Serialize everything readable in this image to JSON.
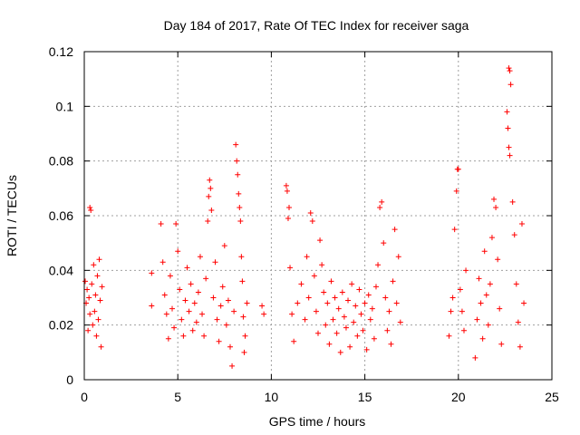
{
  "chart_data": {
    "type": "scatter",
    "title": "Day 184 of 2017, Rate Of TEC Index for receiver saga",
    "xlabel": "GPS time / hours",
    "ylabel": "ROTI / TECUs",
    "xlim": [
      0,
      25
    ],
    "ylim": [
      0,
      0.12
    ],
    "x_ticks": [
      0,
      5,
      10,
      15,
      20,
      25
    ],
    "y_ticks": [
      0,
      0.02,
      0.04,
      0.06,
      0.08,
      0.1,
      0.12
    ],
    "x_tick_labels": [
      "0",
      "5",
      "10",
      "15",
      "20",
      "25"
    ],
    "y_tick_labels": [
      "0",
      "0.02",
      "0.04",
      "0.06",
      "0.08",
      "0.1",
      "0.12"
    ],
    "grid": true,
    "marker": "+",
    "marker_color": "#ff0000",
    "series": [
      {
        "name": "ROTI",
        "points": [
          [
            0.05,
            0.036
          ],
          [
            0.1,
            0.028
          ],
          [
            0.15,
            0.033
          ],
          [
            0.2,
            0.018
          ],
          [
            0.25,
            0.03
          ],
          [
            0.3,
            0.024
          ],
          [
            0.3,
            0.063
          ],
          [
            0.35,
            0.062
          ],
          [
            0.4,
            0.035
          ],
          [
            0.45,
            0.02
          ],
          [
            0.5,
            0.042
          ],
          [
            0.55,
            0.025
          ],
          [
            0.6,
            0.031
          ],
          [
            0.65,
            0.016
          ],
          [
            0.7,
            0.038
          ],
          [
            0.75,
            0.022
          ],
          [
            0.8,
            0.044
          ],
          [
            0.85,
            0.029
          ],
          [
            0.9,
            0.012
          ],
          [
            0.95,
            0.034
          ],
          [
            3.6,
            0.039
          ],
          [
            3.6,
            0.027
          ],
          [
            4.1,
            0.057
          ],
          [
            4.2,
            0.043
          ],
          [
            4.3,
            0.031
          ],
          [
            4.4,
            0.024
          ],
          [
            4.5,
            0.015
          ],
          [
            4.6,
            0.038
          ],
          [
            4.7,
            0.026
          ],
          [
            4.8,
            0.019
          ],
          [
            4.9,
            0.057
          ],
          [
            5.0,
            0.047
          ],
          [
            5.1,
            0.033
          ],
          [
            5.2,
            0.022
          ],
          [
            5.3,
            0.016
          ],
          [
            5.4,
            0.029
          ],
          [
            5.5,
            0.041
          ],
          [
            5.6,
            0.025
          ],
          [
            5.7,
            0.035
          ],
          [
            5.8,
            0.018
          ],
          [
            5.9,
            0.028
          ],
          [
            6.0,
            0.021
          ],
          [
            6.1,
            0.032
          ],
          [
            6.2,
            0.045
          ],
          [
            6.3,
            0.024
          ],
          [
            6.4,
            0.016
          ],
          [
            6.5,
            0.037
          ],
          [
            6.6,
            0.058
          ],
          [
            6.65,
            0.067
          ],
          [
            6.7,
            0.073
          ],
          [
            6.75,
            0.07
          ],
          [
            6.8,
            0.062
          ],
          [
            6.9,
            0.03
          ],
          [
            7.0,
            0.043
          ],
          [
            7.1,
            0.022
          ],
          [
            7.2,
            0.014
          ],
          [
            7.3,
            0.027
          ],
          [
            7.4,
            0.034
          ],
          [
            7.5,
            0.049
          ],
          [
            7.6,
            0.02
          ],
          [
            7.7,
            0.029
          ],
          [
            7.8,
            0.012
          ],
          [
            7.9,
            0.005
          ],
          [
            8.0,
            0.025
          ],
          [
            8.1,
            0.086
          ],
          [
            8.15,
            0.08
          ],
          [
            8.2,
            0.075
          ],
          [
            8.25,
            0.068
          ],
          [
            8.3,
            0.063
          ],
          [
            8.35,
            0.058
          ],
          [
            8.4,
            0.045
          ],
          [
            8.45,
            0.036
          ],
          [
            8.5,
            0.023
          ],
          [
            8.55,
            0.01
          ],
          [
            8.6,
            0.016
          ],
          [
            8.7,
            0.028
          ],
          [
            9.5,
            0.027
          ],
          [
            9.6,
            0.024
          ],
          [
            10.8,
            0.071
          ],
          [
            10.85,
            0.069
          ],
          [
            10.9,
            0.059
          ],
          [
            10.95,
            0.063
          ],
          [
            11.0,
            0.041
          ],
          [
            11.1,
            0.024
          ],
          [
            11.2,
            0.014
          ],
          [
            11.4,
            0.028
          ],
          [
            11.6,
            0.035
          ],
          [
            11.8,
            0.022
          ],
          [
            11.9,
            0.045
          ],
          [
            12.0,
            0.03
          ],
          [
            12.1,
            0.061
          ],
          [
            12.2,
            0.058
          ],
          [
            12.3,
            0.038
          ],
          [
            12.4,
            0.025
          ],
          [
            12.5,
            0.017
          ],
          [
            12.6,
            0.051
          ],
          [
            12.7,
            0.042
          ],
          [
            12.8,
            0.032
          ],
          [
            12.9,
            0.02
          ],
          [
            13.0,
            0.028
          ],
          [
            13.1,
            0.013
          ],
          [
            13.2,
            0.036
          ],
          [
            13.3,
            0.022
          ],
          [
            13.4,
            0.03
          ],
          [
            13.5,
            0.017
          ],
          [
            13.6,
            0.026
          ],
          [
            13.7,
            0.01
          ],
          [
            13.8,
            0.032
          ],
          [
            13.9,
            0.023
          ],
          [
            14.0,
            0.019
          ],
          [
            14.1,
            0.029
          ],
          [
            14.2,
            0.012
          ],
          [
            14.3,
            0.035
          ],
          [
            14.4,
            0.021
          ],
          [
            14.5,
            0.027
          ],
          [
            14.6,
            0.016
          ],
          [
            14.7,
            0.033
          ],
          [
            14.8,
            0.024
          ],
          [
            14.9,
            0.018
          ],
          [
            15.0,
            0.028
          ],
          [
            15.1,
            0.011
          ],
          [
            15.2,
            0.031
          ],
          [
            15.3,
            0.022
          ],
          [
            15.4,
            0.026
          ],
          [
            15.5,
            0.015
          ],
          [
            15.6,
            0.034
          ],
          [
            15.7,
            0.042
          ],
          [
            15.8,
            0.063
          ],
          [
            15.9,
            0.065
          ],
          [
            16.0,
            0.05
          ],
          [
            16.1,
            0.03
          ],
          [
            16.2,
            0.018
          ],
          [
            16.3,
            0.025
          ],
          [
            16.4,
            0.013
          ],
          [
            16.5,
            0.036
          ],
          [
            16.6,
            0.055
          ],
          [
            16.7,
            0.028
          ],
          [
            16.8,
            0.045
          ],
          [
            16.9,
            0.021
          ],
          [
            19.5,
            0.016
          ],
          [
            19.6,
            0.025
          ],
          [
            19.7,
            0.03
          ],
          [
            19.8,
            0.055
          ],
          [
            19.9,
            0.069
          ],
          [
            19.95,
            0.077
          ],
          [
            20.0,
            0.077
          ],
          [
            20.1,
            0.033
          ],
          [
            20.2,
            0.025
          ],
          [
            20.3,
            0.018
          ],
          [
            20.4,
            0.04
          ],
          [
            20.9,
            0.008
          ],
          [
            21.0,
            0.022
          ],
          [
            21.1,
            0.037
          ],
          [
            21.2,
            0.028
          ],
          [
            21.3,
            0.015
          ],
          [
            21.4,
            0.047
          ],
          [
            21.5,
            0.031
          ],
          [
            21.6,
            0.02
          ],
          [
            21.7,
            0.035
          ],
          [
            21.8,
            0.052
          ],
          [
            21.9,
            0.066
          ],
          [
            22.0,
            0.063
          ],
          [
            22.1,
            0.044
          ],
          [
            22.2,
            0.026
          ],
          [
            22.3,
            0.013
          ],
          [
            22.6,
            0.098
          ],
          [
            22.65,
            0.092
          ],
          [
            22.7,
            0.085
          ],
          [
            22.75,
            0.082
          ],
          [
            22.7,
            0.114
          ],
          [
            22.75,
            0.113
          ],
          [
            22.8,
            0.108
          ],
          [
            22.9,
            0.065
          ],
          [
            23.0,
            0.053
          ],
          [
            23.1,
            0.035
          ],
          [
            23.2,
            0.021
          ],
          [
            23.3,
            0.012
          ],
          [
            23.4,
            0.057
          ],
          [
            23.5,
            0.028
          ]
        ]
      }
    ]
  }
}
